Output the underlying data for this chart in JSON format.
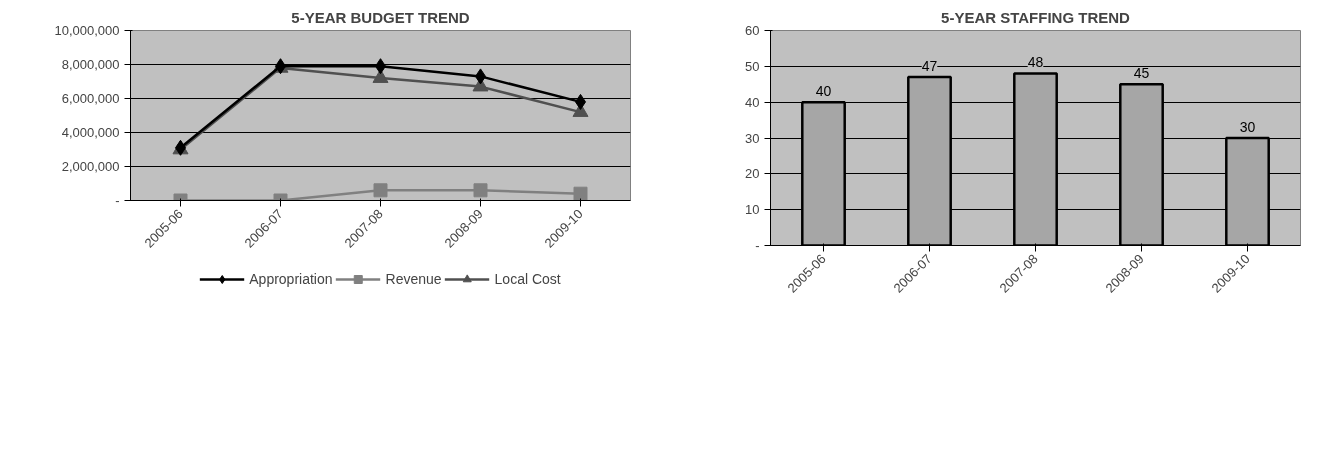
{
  "chart_data": [
    {
      "type": "line",
      "title": "5-YEAR BUDGET TREND",
      "categories": [
        "2005-06",
        "2006-07",
        "2007-08",
        "2008-09",
        "2009-10"
      ],
      "series": [
        {
          "name": "Appropriation",
          "color": "#000000",
          "marker": "diamond",
          "values": [
            3100000,
            7900000,
            7900000,
            7300000,
            5800000
          ]
        },
        {
          "name": "Revenue",
          "color": "#808080",
          "marker": "square",
          "values": [
            0,
            0,
            600000,
            600000,
            400000
          ]
        },
        {
          "name": "Local Cost",
          "color": "#505050",
          "marker": "triangle",
          "values": [
            3000000,
            7800000,
            7200000,
            6700000,
            5200000
          ]
        }
      ],
      "ylim": [
        0,
        10000000
      ],
      "yticks": [
        {
          "value": 0,
          "label": "-"
        },
        {
          "value": 2000000,
          "label": "2,000,000"
        },
        {
          "value": 4000000,
          "label": "4,000,000"
        },
        {
          "value": 6000000,
          "label": "6,000,000"
        },
        {
          "value": 8000000,
          "label": "8,000,000"
        },
        {
          "value": 10000000,
          "label": "10,000,000"
        }
      ],
      "grid": "y",
      "legend": "bottom",
      "line_style": "solid"
    },
    {
      "type": "bar",
      "title": "5-YEAR STAFFING TREND",
      "categories": [
        "2005-06",
        "2006-07",
        "2007-08",
        "2008-09",
        "2009-10"
      ],
      "values": [
        40,
        47,
        48,
        45,
        30
      ],
      "color": "#a6a6a6",
      "ylim": [
        0,
        60
      ],
      "yticks": [
        {
          "value": 0,
          "label": "-"
        },
        10,
        20,
        30,
        40,
        50,
        60
      ],
      "grid": "y",
      "data_labels": true
    }
  ]
}
